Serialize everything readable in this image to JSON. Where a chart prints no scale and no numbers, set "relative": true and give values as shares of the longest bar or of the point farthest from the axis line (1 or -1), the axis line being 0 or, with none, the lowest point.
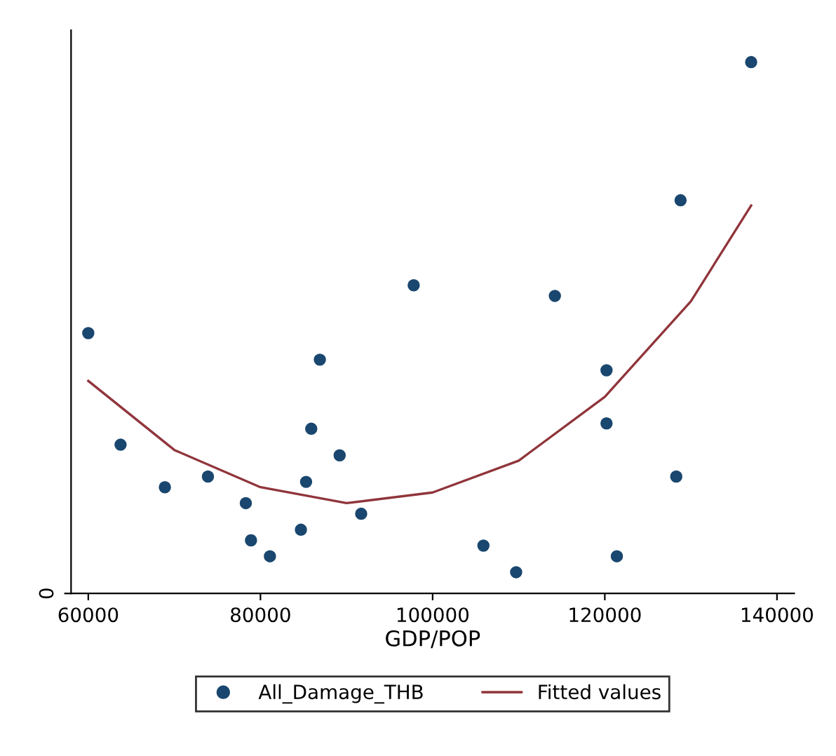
{
  "chart_data": {
    "type": "scatter",
    "relative": true,
    "xlabel": "GDP/POP",
    "xlim": [
      58000,
      142000
    ],
    "xticks": [
      60000,
      80000,
      100000,
      120000,
      140000
    ],
    "annotations": [
      "0"
    ],
    "legend": "bottom",
    "series": [
      {
        "name": "All_Damage_THB",
        "marker": "circle",
        "color": "#1a476f",
        "x": [
          60000,
          63750,
          68900,
          73900,
          78300,
          78900,
          81100,
          84700,
          85300,
          85900,
          86900,
          89200,
          91700,
          97800,
          105900,
          109700,
          114200,
          120200,
          120200,
          121400,
          128300,
          128800,
          137000
        ],
        "values": [
          0.49,
          0.28,
          0.2,
          0.22,
          0.17,
          0.1,
          0.07,
          0.12,
          0.21,
          0.31,
          0.44,
          0.26,
          0.15,
          0.58,
          0.09,
          0.04,
          0.56,
          0.42,
          0.32,
          0.07,
          0.22,
          0.74,
          1
        ]
      },
      {
        "name": "Fitted values",
        "type": "line",
        "color": "#90353b",
        "x": [
          60000,
          70000,
          80000,
          90000,
          100000,
          110000,
          120000,
          130000,
          137000
        ],
        "values": [
          0.4,
          0.27,
          0.2,
          0.17,
          0.19,
          0.25,
          0.37,
          0.55,
          0.73
        ]
      }
    ]
  }
}
